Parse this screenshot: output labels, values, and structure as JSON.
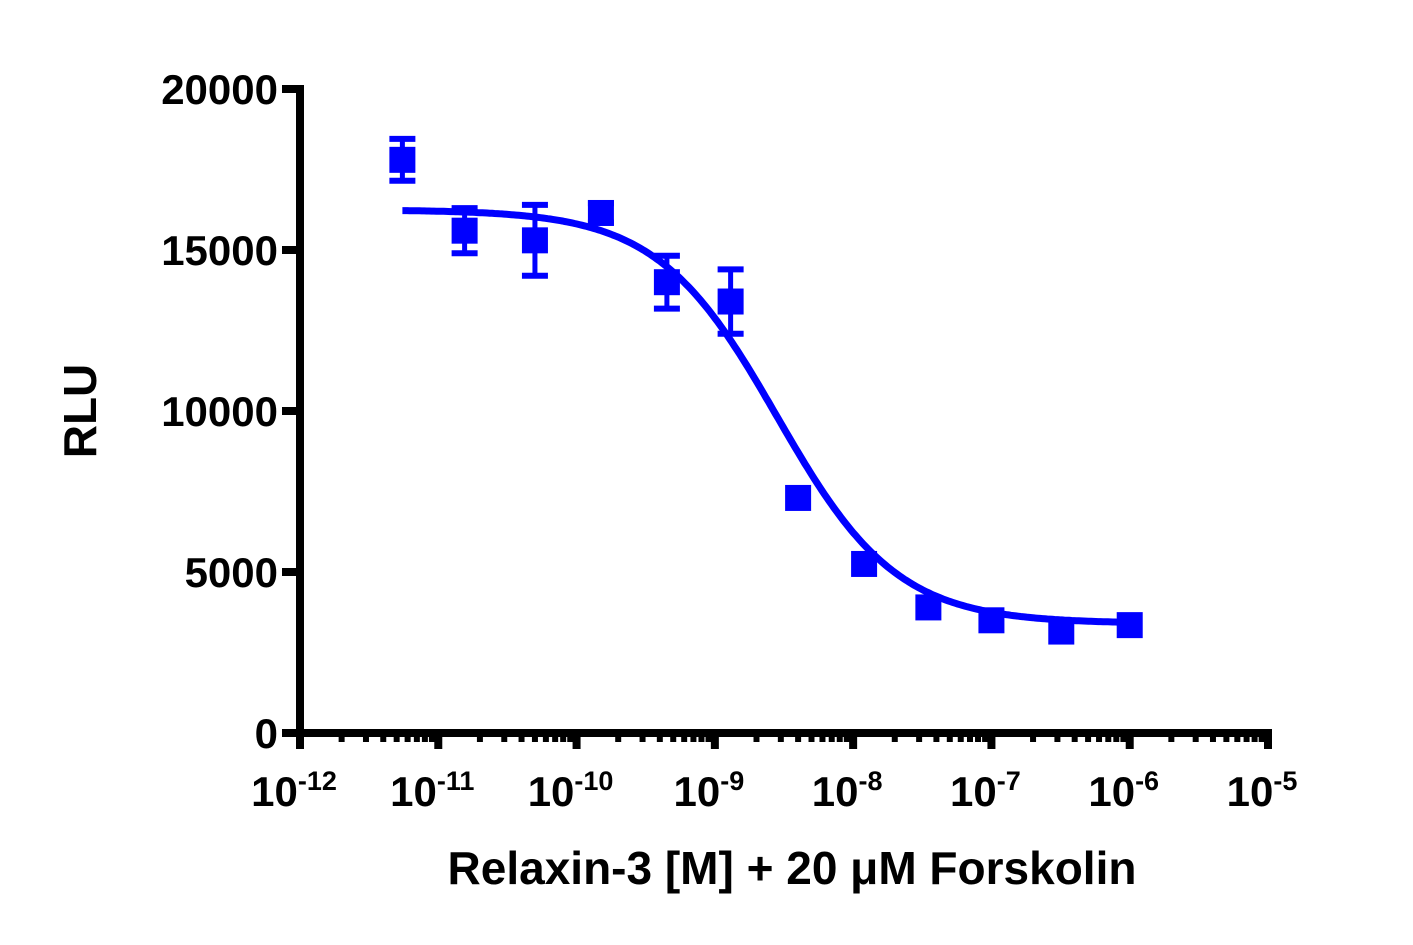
{
  "chart_data": {
    "type": "scatter",
    "title": "",
    "xlabel": "Relaxin-3 [M] + 20 μM Forskolin",
    "ylabel": "RLU",
    "xscale": "log",
    "xlim": [
      1e-12,
      1e-05
    ],
    "ylim": [
      0,
      20000
    ],
    "grid": false,
    "legend": null,
    "x_ticks": [
      {
        "base": "10",
        "exp": "-12"
      },
      {
        "base": "10",
        "exp": "-11"
      },
      {
        "base": "10",
        "exp": "-10"
      },
      {
        "base": "10",
        "exp": "-9"
      },
      {
        "base": "10",
        "exp": "-8"
      },
      {
        "base": "10",
        "exp": "-7"
      },
      {
        "base": "10",
        "exp": "-6"
      },
      {
        "base": "10",
        "exp": "-5"
      }
    ],
    "y_ticks": [
      "0",
      "5000",
      "10000",
      "15000",
      "20000"
    ],
    "series": [
      {
        "name": "Relaxin-3",
        "color": "#0000ff",
        "marker": "square",
        "x": [
          5.5e-12,
          1.55e-11,
          5e-11,
          1.5e-10,
          4.5e-10,
          1.3e-09,
          4e-09,
          1.2e-08,
          3.5e-08,
          1e-07,
          3.2e-07,
          1e-06
        ],
        "y": [
          17800,
          15600,
          15300,
          16150,
          14000,
          13400,
          7300,
          5250,
          3900,
          3500,
          3150,
          3350
        ],
        "error": [
          650,
          700,
          1100,
          300,
          820,
          1000,
          150,
          150,
          150,
          150,
          150,
          150
        ]
      }
    ],
    "fit": {
      "model": "sigmoidal dose-response (4PL)",
      "top": 16250,
      "bottom": 3400,
      "logEC50": -8.55,
      "hill": -1.0,
      "x_range": [
        5.5e-12,
        1e-06
      ],
      "color": "#0000ff"
    }
  }
}
